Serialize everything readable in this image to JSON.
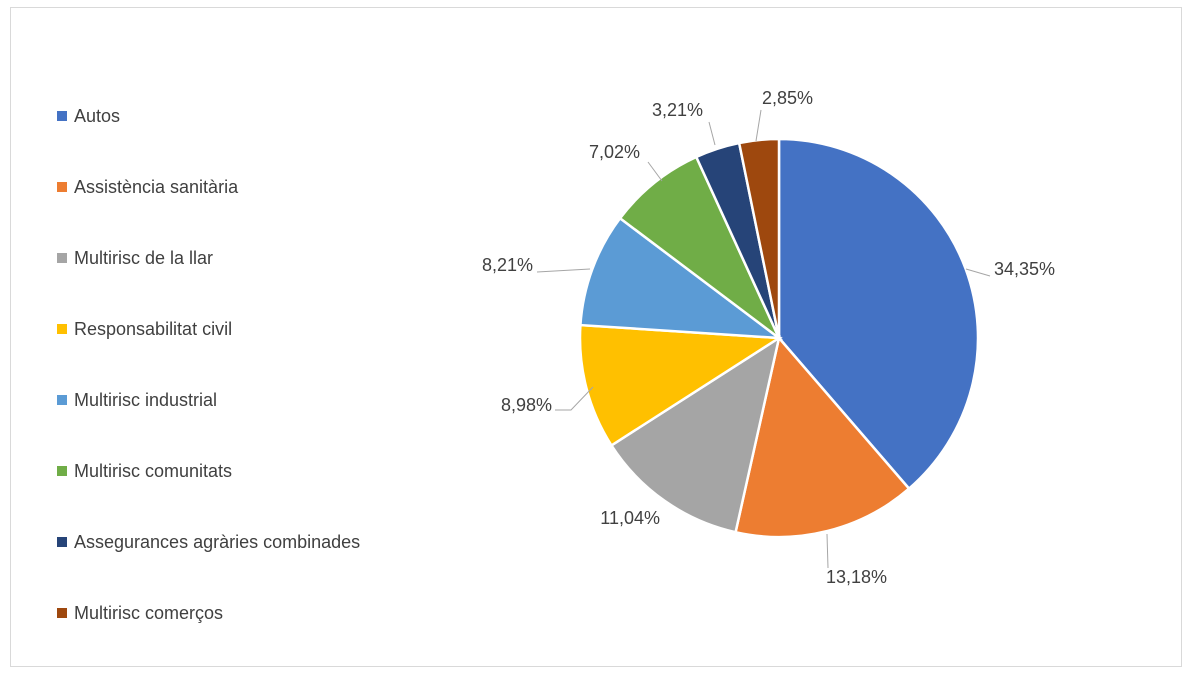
{
  "chart_data": {
    "type": "pie",
    "title": "",
    "legend_position": "left",
    "categories": [
      "Autos",
      "Assistència sanitària",
      "Multirisc de la llar",
      "Responsabilitat civil",
      "Multirisc industrial",
      "Multirisc comunitats",
      "Assegurances agràries combinades",
      "Multirisc comerços"
    ],
    "values": [
      34.35,
      13.18,
      11.04,
      8.98,
      8.21,
      7.02,
      3.21,
      2.85
    ],
    "data_labels": [
      "34,35%",
      "13,18%",
      "11,04%",
      "8,98%",
      "8,21%",
      "7,02%",
      "3,21%",
      "2,85%"
    ],
    "colors": [
      "#4472C4",
      "#ED7D31",
      "#A5A5A5",
      "#FFC000",
      "#5B9BD5",
      "#70AD47",
      "#264478",
      "#9E480E"
    ]
  }
}
